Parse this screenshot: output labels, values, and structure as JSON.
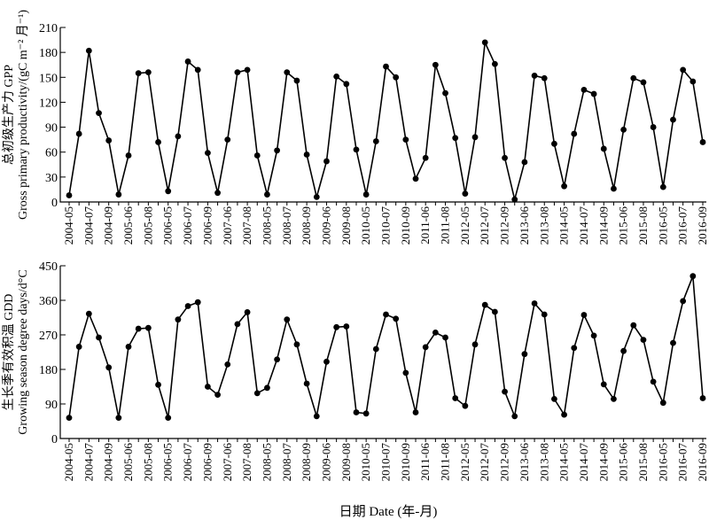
{
  "xlabel": "日期 Date (年-月)",
  "x_tick_labels": [
    "2004-05",
    "2004-07",
    "2004-09",
    "2005-06",
    "2005-08",
    "2006-05",
    "2006-07",
    "2006-09",
    "2007-06",
    "2007-08",
    "2008-05",
    "2008-07",
    "2008-09",
    "2009-06",
    "2009-08",
    "2010-05",
    "2010-07",
    "2010-09",
    "2011-06",
    "2011-08",
    "2012-05",
    "2012-07",
    "2012-09",
    "2013-06",
    "2013-08",
    "2014-05",
    "2014-07",
    "2014-09",
    "2015-06",
    "2015-08",
    "2016-05",
    "2016-07",
    "2016-09"
  ],
  "chart_data": [
    {
      "type": "line",
      "ylabel_cn": "总初级生产力 GPP",
      "ylabel_en": "Gross primary productivity/(gC m⁻² 月⁻¹)",
      "ylim": [
        0,
        210
      ],
      "yticks": [
        0,
        30,
        60,
        90,
        120,
        150,
        180,
        210
      ],
      "x": [
        "2004-05",
        "2004-06",
        "2004-07",
        "2004-08",
        "2004-09",
        "2005-05",
        "2005-06",
        "2005-07",
        "2005-08",
        "2005-09",
        "2006-05",
        "2006-06",
        "2006-07",
        "2006-08",
        "2006-09",
        "2007-05",
        "2007-06",
        "2007-07",
        "2007-08",
        "2007-09",
        "2008-05",
        "2008-06",
        "2008-07",
        "2008-08",
        "2008-09",
        "2009-05",
        "2009-06",
        "2009-07",
        "2009-08",
        "2009-09",
        "2010-05",
        "2010-06",
        "2010-07",
        "2010-08",
        "2010-09",
        "2011-05",
        "2011-06",
        "2011-07",
        "2011-08",
        "2011-09",
        "2012-05",
        "2012-06",
        "2012-07",
        "2012-08",
        "2012-09",
        "2013-05",
        "2013-06",
        "2013-07",
        "2013-08",
        "2013-09",
        "2014-05",
        "2014-06",
        "2014-07",
        "2014-08",
        "2014-09",
        "2015-05",
        "2015-06",
        "2015-07",
        "2015-08",
        "2015-09",
        "2016-05",
        "2016-06",
        "2016-07",
        "2016-08",
        "2016-09"
      ],
      "values": [
        8,
        82,
        182,
        107,
        74,
        9,
        56,
        155,
        156,
        72,
        13,
        79,
        169,
        159,
        59,
        11,
        75,
        156,
        159,
        56,
        9,
        62,
        156,
        146,
        57,
        6,
        49,
        151,
        142,
        63,
        9,
        73,
        163,
        150,
        75,
        28,
        53,
        165,
        131,
        77,
        10,
        78,
        192,
        166,
        53,
        3,
        48,
        152,
        149,
        70,
        19,
        82,
        135,
        130,
        64,
        16,
        87,
        149,
        144,
        90,
        18,
        99,
        159,
        145,
        72
      ]
    },
    {
      "type": "line",
      "ylabel_cn": "生长季有效积温 GDD",
      "ylabel_en": "Growing season degree days/d°C",
      "ylim": [
        0,
        450
      ],
      "yticks": [
        0,
        90,
        180,
        270,
        360,
        450
      ],
      "x": [
        "2004-05",
        "2004-06",
        "2004-07",
        "2004-08",
        "2004-09",
        "2005-05",
        "2005-06",
        "2005-07",
        "2005-08",
        "2005-09",
        "2006-05",
        "2006-06",
        "2006-07",
        "2006-08",
        "2006-09",
        "2007-05",
        "2007-06",
        "2007-07",
        "2007-08",
        "2007-09",
        "2008-05",
        "2008-06",
        "2008-07",
        "2008-08",
        "2008-09",
        "2009-05",
        "2009-06",
        "2009-07",
        "2009-08",
        "2009-09",
        "2010-05",
        "2010-06",
        "2010-07",
        "2010-08",
        "2010-09",
        "2011-05",
        "2011-06",
        "2011-07",
        "2011-08",
        "2011-09",
        "2012-05",
        "2012-06",
        "2012-07",
        "2012-08",
        "2012-09",
        "2013-05",
        "2013-06",
        "2013-07",
        "2013-08",
        "2013-09",
        "2014-05",
        "2014-06",
        "2014-07",
        "2014-08",
        "2014-09",
        "2015-05",
        "2015-06",
        "2015-07",
        "2015-08",
        "2015-09",
        "2016-05",
        "2016-06",
        "2016-07",
        "2016-08",
        "2016-09"
      ],
      "values": [
        54,
        239,
        325,
        263,
        185,
        54,
        239,
        286,
        288,
        140,
        54,
        310,
        345,
        355,
        135,
        114,
        193,
        298,
        329,
        118,
        132,
        206,
        310,
        245,
        143,
        58,
        200,
        290,
        292,
        68,
        65,
        233,
        323,
        312,
        171,
        68,
        238,
        276,
        263,
        105,
        85,
        245,
        348,
        330,
        122,
        58,
        220,
        352,
        323,
        103,
        62,
        236,
        322,
        268,
        141,
        103,
        228,
        295,
        257,
        148,
        93,
        249,
        358,
        423,
        105
      ]
    }
  ]
}
